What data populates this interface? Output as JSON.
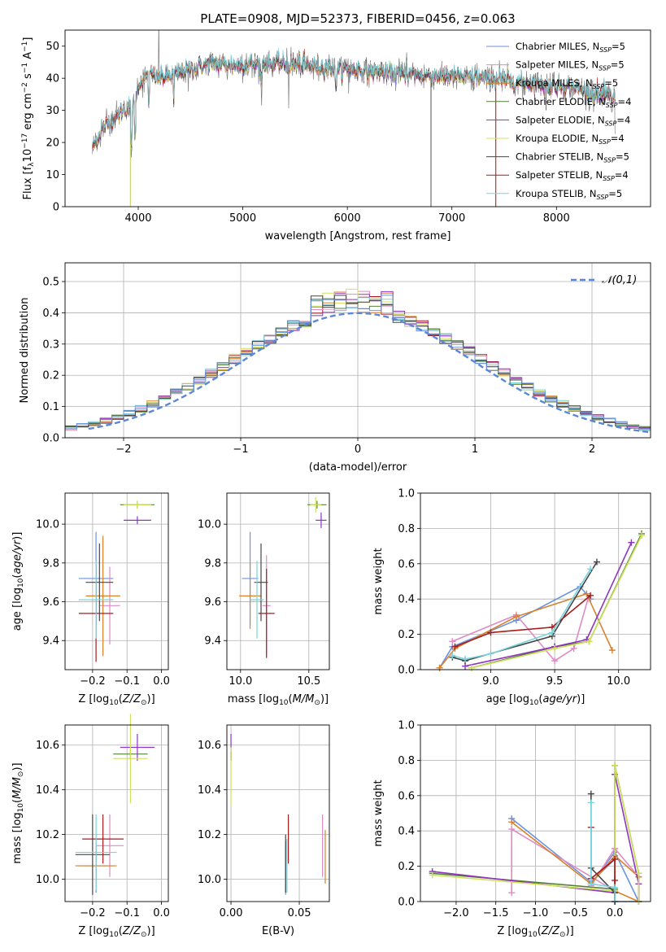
{
  "title": "PLATE=0908, MJD=52373, FIBERID=0456, z=0.063",
  "colors": [
    "#6a93e0",
    "#e08ac4",
    "#d9822b",
    "#55803a",
    "#8e35c0",
    "#cfe15a",
    "#474747",
    "#a81c1c",
    "#78d4dd"
  ],
  "chart_data": [
    {
      "id": "spectrum",
      "type": "line",
      "xlabel": "wavelength [Angstrom, rest frame]",
      "ylabel": "Flux [f_λ10^-17 erg cm^-2 s^-1 A^-1]",
      "xlim": [
        3300,
        8900
      ],
      "ylim": [
        0,
        55
      ],
      "xticks": [
        4000,
        5000,
        6000,
        7000,
        8000
      ],
      "yticks": [
        0,
        10,
        20,
        30,
        40,
        50
      ],
      "legend_position": "upper-right",
      "series": [
        {
          "name": "Chabrier MILES, N_SSP=5"
        },
        {
          "name": "Salpeter MILES, N_SSP=5"
        },
        {
          "name": "Kroupa MILES, N_SSP=5"
        },
        {
          "name": "Chabrier ELODIE, N_SSP=4"
        },
        {
          "name": "Salpeter ELODIE, N_SSP=4"
        },
        {
          "name": "Kroupa ELODIE, N_SSP=4"
        },
        {
          "name": "Chabrier STELIB, N_SSP=5"
        },
        {
          "name": "Salpeter STELIB, N_SSP=4"
        },
        {
          "name": "Kroupa STELIB, N_SSP=5"
        }
      ],
      "continuum": {
        "x": [
          3560,
          3650,
          3750,
          3850,
          3950,
          4000,
          4100,
          4200,
          4350,
          4500,
          4700,
          4900,
          5100,
          5300,
          5500,
          5800,
          6100,
          6400,
          6700,
          7000,
          7300,
          7600,
          7900,
          8200,
          8500
        ],
        "y": [
          18,
          24,
          27,
          30,
          31,
          38,
          41,
          40,
          41,
          43,
          44.5,
          44,
          44.5,
          44.5,
          44,
          43.5,
          42.5,
          41.5,
          41,
          40.5,
          40,
          39,
          38,
          37,
          34
        ]
      }
    },
    {
      "id": "residuals",
      "type": "histogram",
      "xlabel": "(data-model)/error",
      "ylabel": "Normed distribution",
      "xlim": [
        -2.5,
        2.5
      ],
      "ylim": [
        0,
        0.56
      ],
      "xticks": [
        -2,
        -1,
        0,
        1,
        2
      ],
      "yticks": [
        0.0,
        0.1,
        0.2,
        0.3,
        0.4,
        0.5
      ],
      "reference": {
        "name": "𝒩(0,1)",
        "mean": 0,
        "sigma": 1
      },
      "bin_width": 0.1,
      "bin_start": -2.5
    },
    {
      "id": "age_vs_Z",
      "type": "errorbar",
      "xlabel": "Z [log10(Z/Z☉)]",
      "ylabel": "age  [log10(age/yr)]",
      "xlim": [
        -0.28,
        0.02
      ],
      "ylim": [
        9.25,
        10.16
      ],
      "xticks": [
        -0.2,
        -0.1,
        0.0
      ],
      "yticks": [
        9.4,
        9.6,
        9.8,
        10.0
      ],
      "points": [
        {
          "x": -0.19,
          "xerr": 0.05,
          "y": 9.72,
          "yerr": 0.24
        },
        {
          "x": -0.15,
          "xerr": 0.03,
          "y": 9.58,
          "yerr": 0.2
        },
        {
          "x": -0.17,
          "xerr": 0.05,
          "y": 9.63,
          "yerr": 0.31
        },
        {
          "x": -0.07,
          "xerr": 0.05,
          "y": 10.1,
          "yerr": 0.02
        },
        {
          "x": -0.07,
          "xerr": 0.04,
          "y": 10.02,
          "yerr": 0.02
        },
        {
          "x": -0.07,
          "xerr": 0.04,
          "y": 10.1,
          "yerr": 0.02
        },
        {
          "x": -0.18,
          "xerr": 0.04,
          "y": 9.7,
          "yerr": 0.2
        },
        {
          "x": -0.19,
          "xerr": 0.05,
          "y": 9.54,
          "yerr": 0.25
        },
        {
          "x": -0.19,
          "xerr": 0.05,
          "y": 9.61,
          "yerr": 0.2
        }
      ]
    },
    {
      "id": "age_vs_mass",
      "type": "errorbar",
      "xlabel": "mass [log10(M/M☉)]",
      "ylabel": "",
      "xlim": [
        9.9,
        10.65
      ],
      "ylim": [
        9.25,
        10.16
      ],
      "xticks": [
        10.0,
        10.5
      ],
      "yticks": [
        9.4,
        9.6,
        9.8,
        10.0
      ],
      "points": [
        {
          "x": 10.07,
          "xerr": 0.06,
          "y": 9.72,
          "yerr": 0.24
        },
        {
          "x": 10.19,
          "xerr": 0.03,
          "y": 9.58,
          "yerr": 0.26
        },
        {
          "x": 10.07,
          "xerr": 0.08,
          "y": 9.63,
          "yerr": 0.17
        },
        {
          "x": 10.56,
          "xerr": 0.07,
          "y": 10.1,
          "yerr": 0.02
        },
        {
          "x": 10.59,
          "xerr": 0.04,
          "y": 10.02,
          "yerr": 0.04
        },
        {
          "x": 10.55,
          "xerr": 0.04,
          "y": 10.1,
          "yerr": 0.04
        },
        {
          "x": 10.15,
          "xerr": 0.05,
          "y": 9.7,
          "yerr": 0.2
        },
        {
          "x": 10.19,
          "xerr": 0.06,
          "y": 9.54,
          "yerr": 0.23
        },
        {
          "x": 10.12,
          "xerr": 0.05,
          "y": 9.61,
          "yerr": 0.2
        }
      ]
    },
    {
      "id": "weight_vs_age",
      "type": "line",
      "xlabel": "age  [log10(age/yr)]",
      "ylabel": "mass weight",
      "xlim": [
        8.45,
        10.25
      ],
      "ylim": [
        0,
        1.0
      ],
      "xticks": [
        9.0,
        9.5,
        10.0
      ],
      "yticks": [
        0.0,
        0.2,
        0.4,
        0.6,
        0.8,
        1.0
      ],
      "series": [
        {
          "x": [
            8.6,
            8.7,
            9.2,
            9.7,
            9.78
          ],
          "y": [
            0.01,
            0.13,
            0.28,
            0.47,
            0.4
          ]
        },
        {
          "x": [
            8.7,
            9.2,
            9.5,
            9.65,
            9.76
          ],
          "y": [
            0.16,
            0.31,
            0.05,
            0.12,
            0.4
          ]
        },
        {
          "x": [
            8.6,
            8.72,
            9.2,
            9.75,
            9.95
          ],
          "y": [
            0.01,
            0.12,
            0.3,
            0.43,
            0.11
          ]
        },
        {
          "x": [
            8.85,
            9.5,
            9.77,
            10.18
          ],
          "y": [
            0.01,
            0.13,
            0.16,
            0.77
          ]
        },
        {
          "x": [
            8.8,
            9.5,
            9.75,
            10.1
          ],
          "y": [
            0.02,
            0.13,
            0.17,
            0.72
          ]
        },
        {
          "x": [
            8.85,
            9.5,
            9.77,
            10.18
          ],
          "y": [
            0.01,
            0.12,
            0.16,
            0.76
          ]
        },
        {
          "x": [
            8.7,
            8.8,
            9.48,
            9.83
          ],
          "y": [
            0.07,
            0.05,
            0.19,
            0.61
          ]
        },
        {
          "x": [
            8.72,
            9.0,
            9.48,
            9.78
          ],
          "y": [
            0.13,
            0.21,
            0.24,
            0.42
          ]
        },
        {
          "x": [
            8.7,
            8.8,
            9.0,
            9.48,
            9.78
          ],
          "y": [
            0.08,
            0.06,
            0.09,
            0.21,
            0.57
          ]
        }
      ]
    },
    {
      "id": "mass_vs_Z",
      "type": "errorbar",
      "xlabel": "Z [log10(Z/Z☉)]",
      "ylabel": "mass [log10(M/M☉)]",
      "xlim": [
        -0.28,
        0.02
      ],
      "ylim": [
        9.9,
        10.69
      ],
      "xticks": [
        -0.2,
        -0.1,
        0.0
      ],
      "yticks": [
        10.0,
        10.2,
        10.4,
        10.6
      ],
      "points": [
        {
          "x": -0.19,
          "xerr": 0.05,
          "y": 10.06,
          "yerr": 0.12
        },
        {
          "x": -0.15,
          "xerr": 0.04,
          "y": 10.15,
          "yerr": 0.14
        },
        {
          "x": -0.19,
          "xerr": 0.06,
          "y": 10.06,
          "yerr": 0.08
        },
        {
          "x": -0.09,
          "xerr": 0.05,
          "y": 10.56,
          "yerr": 0.02
        },
        {
          "x": -0.07,
          "xerr": 0.05,
          "y": 10.59,
          "yerr": 0.06
        },
        {
          "x": -0.09,
          "xerr": 0.05,
          "y": 10.54,
          "yerr": 0.2
        },
        {
          "x": -0.2,
          "xerr": 0.05,
          "y": 10.11,
          "yerr": 0.18
        },
        {
          "x": -0.17,
          "xerr": 0.06,
          "y": 10.18,
          "yerr": 0.11
        },
        {
          "x": -0.19,
          "xerr": 0.06,
          "y": 10.12,
          "yerr": 0.17
        }
      ]
    },
    {
      "id": "mass_vs_ebv",
      "type": "errorbar",
      "xlabel": "E(B-V)",
      "ylabel": "",
      "xlim": [
        -0.003,
        0.072
      ],
      "ylim": [
        9.9,
        10.69
      ],
      "xticks": [
        0.0,
        0.05
      ],
      "yticks": [
        10.0,
        10.2,
        10.4,
        10.6
      ],
      "points": [
        {
          "x": 0.04,
          "y": 10.05,
          "yerr": 0.12
        },
        {
          "x": 0.067,
          "y": 10.15,
          "yerr": 0.14
        },
        {
          "x": 0.069,
          "y": 10.1,
          "yerr": 0.12
        },
        {
          "x": 0.0,
          "y": 10.55,
          "yerr": 0.02
        },
        {
          "x": 0.0,
          "y": 10.59,
          "yerr": 0.06
        },
        {
          "x": 0.0,
          "y": 10.46,
          "yerr": 0.13
        },
        {
          "x": 0.04,
          "y": 10.07,
          "yerr": 0.13
        },
        {
          "x": 0.042,
          "y": 10.18,
          "yerr": 0.11
        },
        {
          "x": 0.041,
          "y": 10.06,
          "yerr": 0.12
        }
      ]
    },
    {
      "id": "weight_vs_Z",
      "type": "line",
      "xlabel": "Z [log10(Z/Z☉)]",
      "ylabel": "mass weight",
      "xlim": [
        -2.45,
        0.45
      ],
      "ylim": [
        0,
        1.0
      ],
      "xticks": [
        -2.0,
        -1.5,
        -1.0,
        -0.5,
        0.0
      ],
      "yticks": [
        0.0,
        0.2,
        0.4,
        0.6,
        0.8,
        1.0
      ],
      "series": [
        {
          "x": [
            -1.3,
            -0.3,
            0.0,
            0.0,
            0.3,
            0.0,
            -0.3
          ],
          "y": [
            0.47,
            0.11,
            0.24,
            0.0,
            0.0,
            0.28,
            0.1
          ]
        },
        {
          "x": [
            -1.3,
            -1.3,
            0.0,
            0.0,
            0.3,
            0.0,
            -0.3
          ],
          "y": [
            0.05,
            0.41,
            0.06,
            0.3,
            0.14,
            0.3,
            0.09
          ]
        },
        {
          "x": [
            -1.3,
            -0.3,
            0.0,
            0.3,
            0.3,
            0.0
          ],
          "y": [
            0.45,
            0.1,
            0.26,
            0.14,
            0.0,
            0.06
          ]
        },
        {
          "x": [
            -2.3,
            0.0,
            0.0,
            0.3,
            0.3
          ],
          "y": [
            0.16,
            0.07,
            0.77,
            0.16,
            0.0
          ]
        },
        {
          "x": [
            -2.3,
            0.0,
            0.0,
            0.3,
            0.3
          ],
          "y": [
            0.17,
            0.05,
            0.72,
            0.1,
            0.0
          ]
        },
        {
          "x": [
            -2.3,
            0.0,
            0.0,
            0.3,
            0.3
          ],
          "y": [
            0.15,
            0.06,
            0.77,
            0.16,
            0.0
          ]
        },
        {
          "x": [
            -0.3,
            -0.3,
            0.0,
            0.0
          ],
          "y": [
            0.61,
            0.19,
            0.05,
            0.0
          ]
        },
        {
          "x": [
            -0.3,
            -0.3,
            0.0,
            0.0,
            0.0
          ],
          "y": [
            0.42,
            0.13,
            0.24,
            0.12,
            0.0
          ]
        },
        {
          "x": [
            -0.3,
            -0.3,
            0.0,
            0.0
          ],
          "y": [
            0.56,
            0.1,
            0.08,
            0.0
          ]
        }
      ]
    }
  ]
}
